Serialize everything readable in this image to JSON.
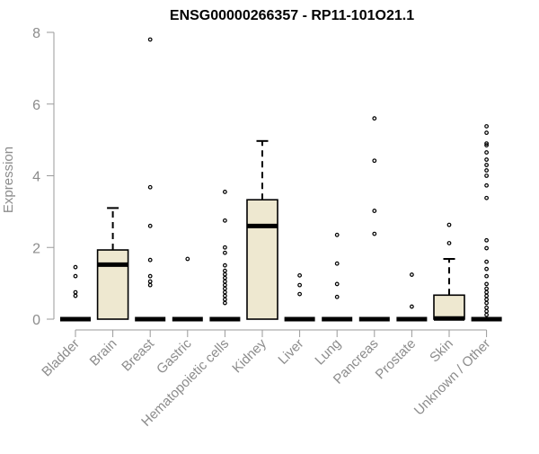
{
  "chart_data": {
    "type": "box",
    "title": "ENSG00000266357 - RP11-101O21.1",
    "xlabel": "",
    "ylabel": "Expression",
    "ylim": [
      0,
      8
    ],
    "yticks": [
      0,
      2,
      4,
      6,
      8
    ],
    "box_fill": "#EEE8D0",
    "categories": [
      "Bladder",
      "Brain",
      "Breast",
      "Gastric",
      "Hematopoietic cells",
      "Kidney",
      "Liver",
      "Lung",
      "Pancreas",
      "Prostate",
      "Skin",
      "Unknown / Other"
    ],
    "boxes": [
      {
        "q1": 0,
        "median": 0,
        "q3": 0,
        "whisker_low": 0,
        "whisker_high": 0,
        "outliers": [
          0.65,
          0.75,
          1.2,
          1.45
        ]
      },
      {
        "q1": 0,
        "median": 1.52,
        "q3": 1.93,
        "whisker_low": 0,
        "whisker_high": 3.1,
        "outliers": []
      },
      {
        "q1": 0,
        "median": 0,
        "q3": 0,
        "whisker_low": 0,
        "whisker_high": 0,
        "outliers": [
          0.95,
          1.05,
          1.2,
          1.65,
          2.6,
          3.68,
          7.8
        ]
      },
      {
        "q1": 0,
        "median": 0,
        "q3": 0,
        "whisker_low": 0,
        "whisker_high": 0,
        "outliers": [
          1.68
        ]
      },
      {
        "q1": 0,
        "median": 0,
        "q3": 0,
        "whisker_low": 0,
        "whisker_high": 0,
        "outliers": [
          0.45,
          0.55,
          0.65,
          0.75,
          0.85,
          0.95,
          1.05,
          1.15,
          1.25,
          1.35,
          1.5,
          1.85,
          2.0,
          2.75,
          3.55
        ]
      },
      {
        "q1": 0,
        "median": 2.6,
        "q3": 3.33,
        "whisker_low": 0,
        "whisker_high": 4.97,
        "outliers": []
      },
      {
        "q1": 0,
        "median": 0,
        "q3": 0,
        "whisker_low": 0,
        "whisker_high": 0,
        "outliers": [
          0.7,
          0.95,
          1.22
        ]
      },
      {
        "q1": 0,
        "median": 0,
        "q3": 0,
        "whisker_low": 0,
        "whisker_high": 0,
        "outliers": [
          0.62,
          0.98,
          1.55,
          2.35
        ]
      },
      {
        "q1": 0,
        "median": 0,
        "q3": 0,
        "whisker_low": 0,
        "whisker_high": 0,
        "outliers": [
          2.38,
          3.02,
          4.42,
          5.6
        ]
      },
      {
        "q1": 0,
        "median": 0,
        "q3": 0,
        "whisker_low": 0,
        "whisker_high": 0,
        "outliers": [
          0.35,
          1.24
        ]
      },
      {
        "q1": 0,
        "median": 0.02,
        "q3": 0.67,
        "whisker_low": 0,
        "whisker_high": 1.68,
        "outliers": [
          2.12,
          2.63
        ]
      },
      {
        "q1": 0,
        "median": 0,
        "q3": 0,
        "whisker_low": 0,
        "whisker_high": 0,
        "outliers": [
          0.12,
          0.22,
          0.32,
          0.45,
          0.55,
          0.65,
          0.75,
          0.85,
          0.98,
          1.2,
          1.4,
          1.6,
          1.98,
          2.2,
          3.38,
          3.73,
          4.0,
          4.15,
          4.3,
          4.45,
          4.65,
          4.85,
          4.9,
          5.2,
          5.38
        ]
      }
    ]
  }
}
